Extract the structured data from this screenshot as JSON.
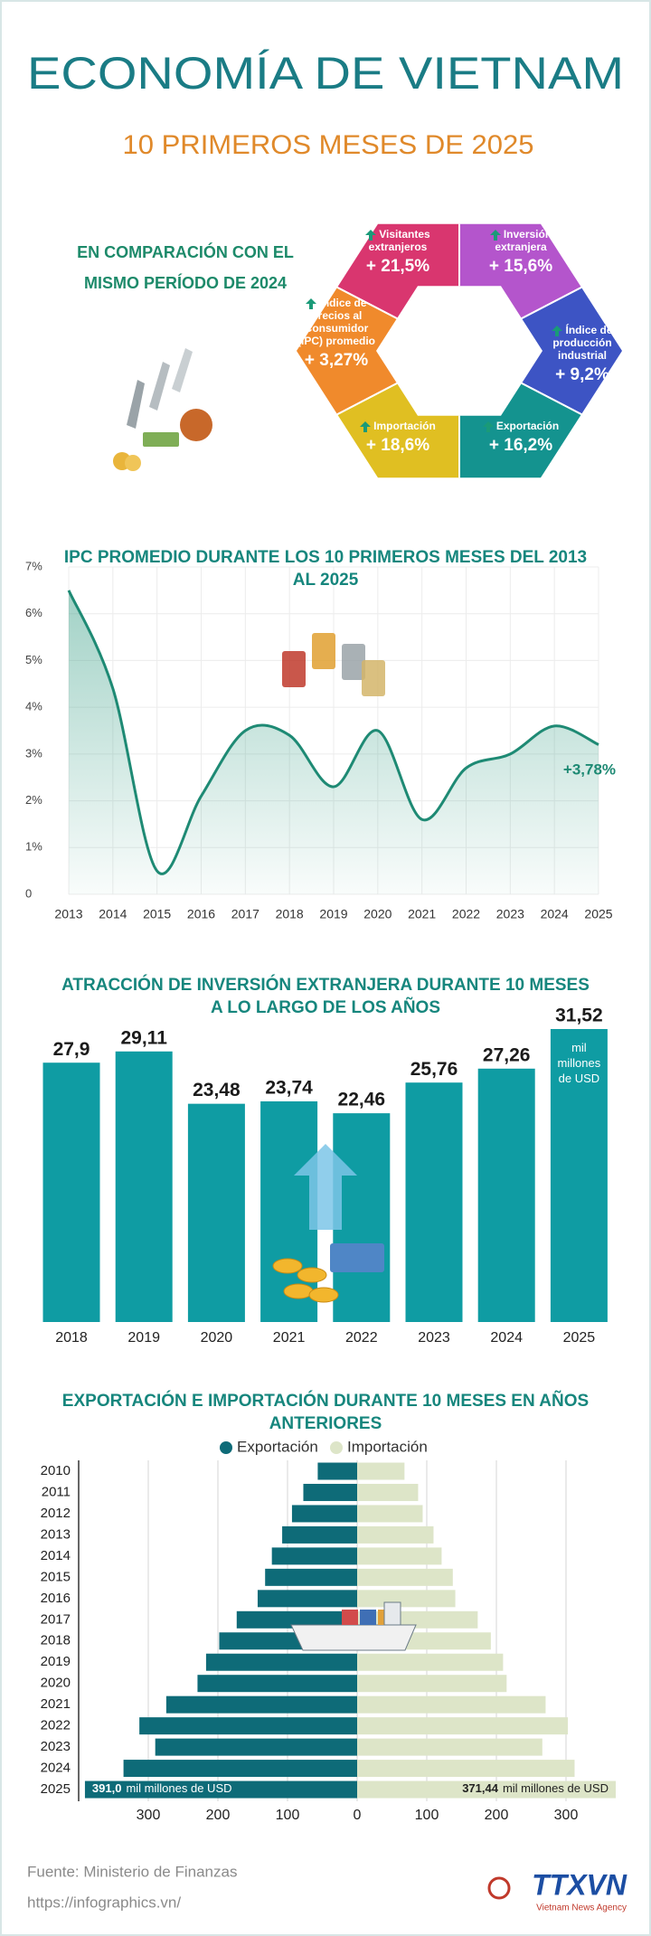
{
  "header": {
    "title": "ECONOMÍA DE VIETNAM",
    "subtitle": "10 PRIMEROS MESES DE 2025"
  },
  "comparison": {
    "heading": "EN COMPARACIÓN CON EL MISMO PERÍODO DE 2024",
    "items": [
      {
        "label": "Visitantes extranjeros",
        "value": "+ 21,5%",
        "color": "#d9366f"
      },
      {
        "label": "Inversión extranjera",
        "value": "+ 15,6%",
        "color": "#b455cc"
      },
      {
        "label": "Índice de producción industrial",
        "value": "+ 9,2%",
        "color": "#3d54c4"
      },
      {
        "label": "Exportación",
        "value": "+ 16,2%",
        "color": "#14938f"
      },
      {
        "label": "Importación",
        "value": "+ 18,6%",
        "color": "#e0bf22"
      },
      {
        "label": "Índice de Precios al Consumidor (IPC) promedio",
        "value": "+ 3,27%",
        "color": "#f08a2c"
      }
    ]
  },
  "chart_data": [
    {
      "type": "line",
      "title": "IPC PROMEDIO DURANTE LOS 10 PRIMEROS MESES DEL 2013 AL 2025",
      "categories": [
        "2013",
        "2014",
        "2015",
        "2016",
        "2017",
        "2018",
        "2019",
        "2020",
        "2021",
        "2022",
        "2023",
        "2024",
        "2025"
      ],
      "values": [
        6.5,
        4.4,
        0.5,
        2.1,
        3.5,
        3.4,
        2.3,
        3.5,
        1.6,
        2.7,
        3.0,
        3.6,
        3.2
      ],
      "color": "#1e8a74",
      "ylim": [
        0,
        7
      ],
      "yticks": [
        0,
        {
          "value": 1,
          "label": "1%"
        },
        {
          "value": 2,
          "label": "2%"
        },
        {
          "value": 3,
          "label": "3%"
        },
        {
          "value": 4,
          "label": "4%"
        },
        {
          "value": 5,
          "label": "5%"
        },
        {
          "value": 6,
          "label": "6%"
        },
        {
          "value": 7,
          "label": "7%"
        }
      ],
      "grid": true,
      "annotation": "+3,78%"
    },
    {
      "type": "bar",
      "title": "ATRACCIÓN DE INVERSIÓN EXTRANJERA DURANTE 10 MESES A LO LARGO DE LOS AÑOS",
      "categories": [
        "2018",
        "2019",
        "2020",
        "2021",
        "2022",
        "2023",
        "2024",
        "2025"
      ],
      "values": [
        27.9,
        29.11,
        23.48,
        23.74,
        22.46,
        25.76,
        27.26,
        31.52
      ],
      "value_labels": [
        "27,9",
        "29,11",
        "23,48",
        "23,74",
        "22,46",
        "25,76",
        "27,26",
        "31,52"
      ],
      "unit": "mil millones de USD",
      "color": "#0f9ca3"
    },
    {
      "type": "butterfly",
      "title": "EXPORTACIÓN E IMPORTACIÓN DURANTE 10 MESES EN AÑOS ANTERIORES",
      "categories": [
        "2010",
        "2011",
        "2012",
        "2013",
        "2014",
        "2015",
        "2016",
        "2017",
        "2018",
        "2019",
        "2020",
        "2021",
        "2022",
        "2023",
        "2024",
        "2025"
      ],
      "series": [
        {
          "name": "Exportación",
          "color": "#0e6b78",
          "values": [
            56.6,
            77.3,
            93.6,
            107.7,
            122.5,
            132.2,
            142.9,
            173.0,
            198.1,
            217.0,
            229.3,
            274.2,
            312.8,
            290.0,
            335.6,
            391.0
          ],
          "value_labels": [
            null,
            null,
            null,
            null,
            null,
            null,
            null,
            null,
            null,
            null,
            null,
            null,
            null,
            null,
            null,
            "391,0"
          ]
        },
        {
          "name": "Importación",
          "color": "#dde5c8",
          "values": [
            68.0,
            87.6,
            94.1,
            109.7,
            121.3,
            137.4,
            141.0,
            173.2,
            192.0,
            209.6,
            214.7,
            270.7,
            302.7,
            266.0,
            312.3,
            371.44
          ],
          "value_labels": [
            null,
            null,
            null,
            null,
            null,
            null,
            null,
            null,
            null,
            null,
            null,
            null,
            null,
            null,
            null,
            "371,44"
          ]
        }
      ],
      "unit": "mil millones de USD",
      "xlim": [
        -400,
        400
      ],
      "xticks": [
        {
          "value": -300,
          "label": "300"
        },
        {
          "value": -200,
          "label": "200"
        },
        {
          "value": -100,
          "label": "100"
        },
        0,
        100,
        200,
        300
      ]
    }
  ],
  "footer": {
    "source": "Fuente: Ministerio de Finanzas",
    "url": "https://infographics.vn/",
    "logo": "TTXVN",
    "logo_subtitle": "Vietnam News Agency"
  }
}
